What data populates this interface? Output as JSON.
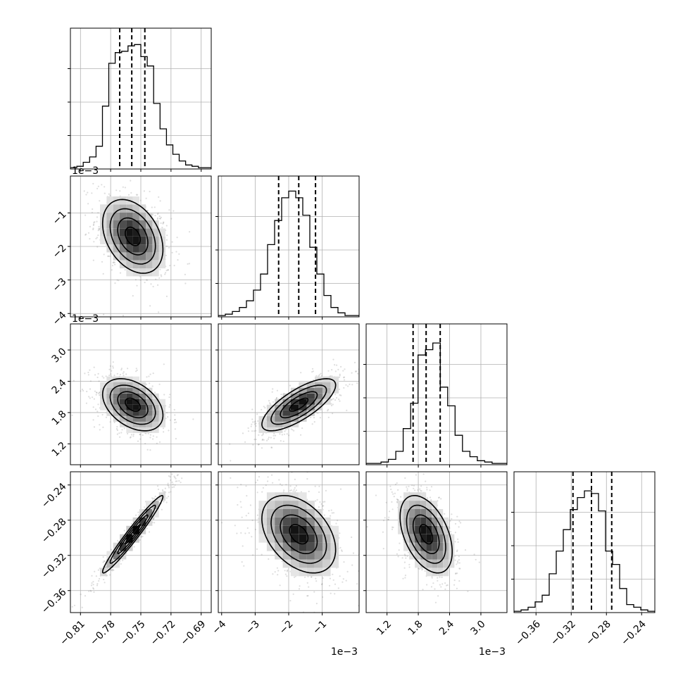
{
  "chart_data": {
    "type": "corner",
    "parameters": [
      {
        "index": 0,
        "range": [
          -0.82,
          -0.68
        ],
        "ticks": [
          -0.81,
          -0.78,
          -0.75,
          -0.72,
          -0.69
        ],
        "tick_labels": [
          "−0.81",
          "−0.78",
          "−0.75",
          "−0.72",
          "−0.69"
        ],
        "multiplier": "",
        "center": -0.758,
        "sigma": 0.015,
        "quantiles": [
          -0.771,
          -0.759,
          -0.746
        ],
        "hist_values": [
          0.01,
          0.02,
          0.05,
          0.09,
          0.17,
          0.47,
          0.79,
          0.87,
          0.88,
          0.92,
          0.93,
          0.84,
          0.77,
          0.49,
          0.3,
          0.18,
          0.11,
          0.06,
          0.03,
          0.02,
          0.01,
          0.01
        ]
      },
      {
        "index": 1,
        "range": [
          -0.0041,
          0.0001
        ],
        "ticks": [
          -0.004,
          -0.003,
          -0.002,
          -0.001
        ],
        "tick_labels": [
          "−4",
          "−3",
          "−2",
          "−1"
        ],
        "multiplier": "1e−3",
        "center": -0.0017,
        "sigma": 0.00055,
        "quantiles": [
          -0.0023,
          -0.0017,
          -0.0012
        ],
        "hist_values": [
          0.01,
          0.02,
          0.04,
          0.07,
          0.12,
          0.2,
          0.32,
          0.54,
          0.72,
          0.89,
          0.94,
          0.89,
          0.76,
          0.52,
          0.32,
          0.16,
          0.07,
          0.03,
          0.01,
          0.01
        ]
      },
      {
        "index": 2,
        "range": [
          0.0008,
          0.0035
        ],
        "ticks": [
          0.0012,
          0.0018,
          0.0024,
          0.003
        ],
        "tick_labels": [
          "1.2",
          "1.8",
          "2.4",
          "3.0"
        ],
        "multiplier": "1e−3",
        "center": 0.00195,
        "sigma": 0.00025,
        "quantiles": [
          0.0017,
          0.00195,
          0.00222
        ],
        "hist_values": [
          0.01,
          0.01,
          0.02,
          0.04,
          0.1,
          0.27,
          0.46,
          0.82,
          0.86,
          0.91,
          0.58,
          0.44,
          0.22,
          0.1,
          0.06,
          0.03,
          0.02,
          0.01,
          0.01
        ]
      },
      {
        "index": 3,
        "range": [
          -0.385,
          -0.225
        ],
        "ticks": [
          -0.36,
          -0.32,
          -0.28,
          -0.24
        ],
        "tick_labels": [
          "−0.36",
          "−0.32",
          "−0.28",
          "−0.24"
        ],
        "multiplier": "",
        "center": -0.296,
        "sigma": 0.022,
        "quantiles": [
          -0.318,
          -0.297,
          -0.274
        ],
        "hist_values": [
          0.01,
          0.02,
          0.04,
          0.08,
          0.13,
          0.29,
          0.46,
          0.62,
          0.77,
          0.86,
          0.91,
          0.89,
          0.76,
          0.46,
          0.36,
          0.18,
          0.06,
          0.04,
          0.02,
          0.01
        ]
      }
    ],
    "correlations": [
      [
        1,
        -0.35,
        -0.4,
        0.97
      ],
      [
        -0.35,
        1,
        0.75,
        -0.4
      ],
      [
        -0.4,
        0.75,
        1,
        -0.45
      ],
      [
        0.97,
        -0.4,
        -0.45,
        1
      ]
    ],
    "grid": true,
    "contour_levels": [
      0.5,
      1.0,
      1.5,
      2.0
    ]
  }
}
